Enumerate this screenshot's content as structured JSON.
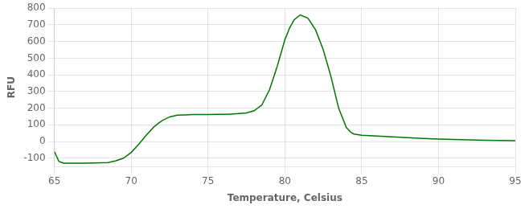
{
  "chart_data": {
    "type": "line",
    "xlabel": "Temperature, Celsius",
    "ylabel": "RFU",
    "x": [
      65.0,
      65.3,
      65.6,
      66.0,
      66.5,
      67.0,
      67.5,
      68.0,
      68.5,
      69.0,
      69.5,
      70.0,
      70.5,
      71.0,
      71.5,
      72.0,
      72.5,
      73.0,
      73.5,
      74.0,
      74.5,
      75.0,
      75.5,
      76.0,
      76.5,
      77.0,
      77.5,
      78.0,
      78.5,
      79.0,
      79.5,
      80.0,
      80.3,
      80.6,
      81.0,
      81.5,
      82.0,
      82.5,
      83.0,
      83.5,
      84.0,
      84.3,
      84.5,
      85.0,
      85.5,
      86.0,
      87.0,
      88.0,
      89.0,
      90.0,
      91.0,
      92.0,
      93.0,
      94.0,
      95.0
    ],
    "values": [
      -60,
      -120,
      -130,
      -130,
      -130,
      -130,
      -128,
      -127,
      -126,
      -115,
      -100,
      -65,
      -15,
      40,
      90,
      125,
      148,
      158,
      160,
      162,
      162,
      162,
      163,
      163,
      165,
      168,
      172,
      185,
      220,
      310,
      450,
      610,
      680,
      730,
      760,
      740,
      670,
      550,
      390,
      200,
      85,
      55,
      45,
      38,
      35,
      33,
      28,
      23,
      18,
      15,
      12,
      10,
      8,
      7,
      5
    ],
    "color": "#007700",
    "xlim": [
      65,
      95
    ],
    "ylim": [
      -150,
      800
    ],
    "xticks": [
      65,
      70,
      75,
      80,
      85,
      90,
      95
    ],
    "yticks": [
      -100,
      0,
      100,
      200,
      300,
      400,
      500,
      600,
      700,
      800
    ],
    "grid": true
  }
}
